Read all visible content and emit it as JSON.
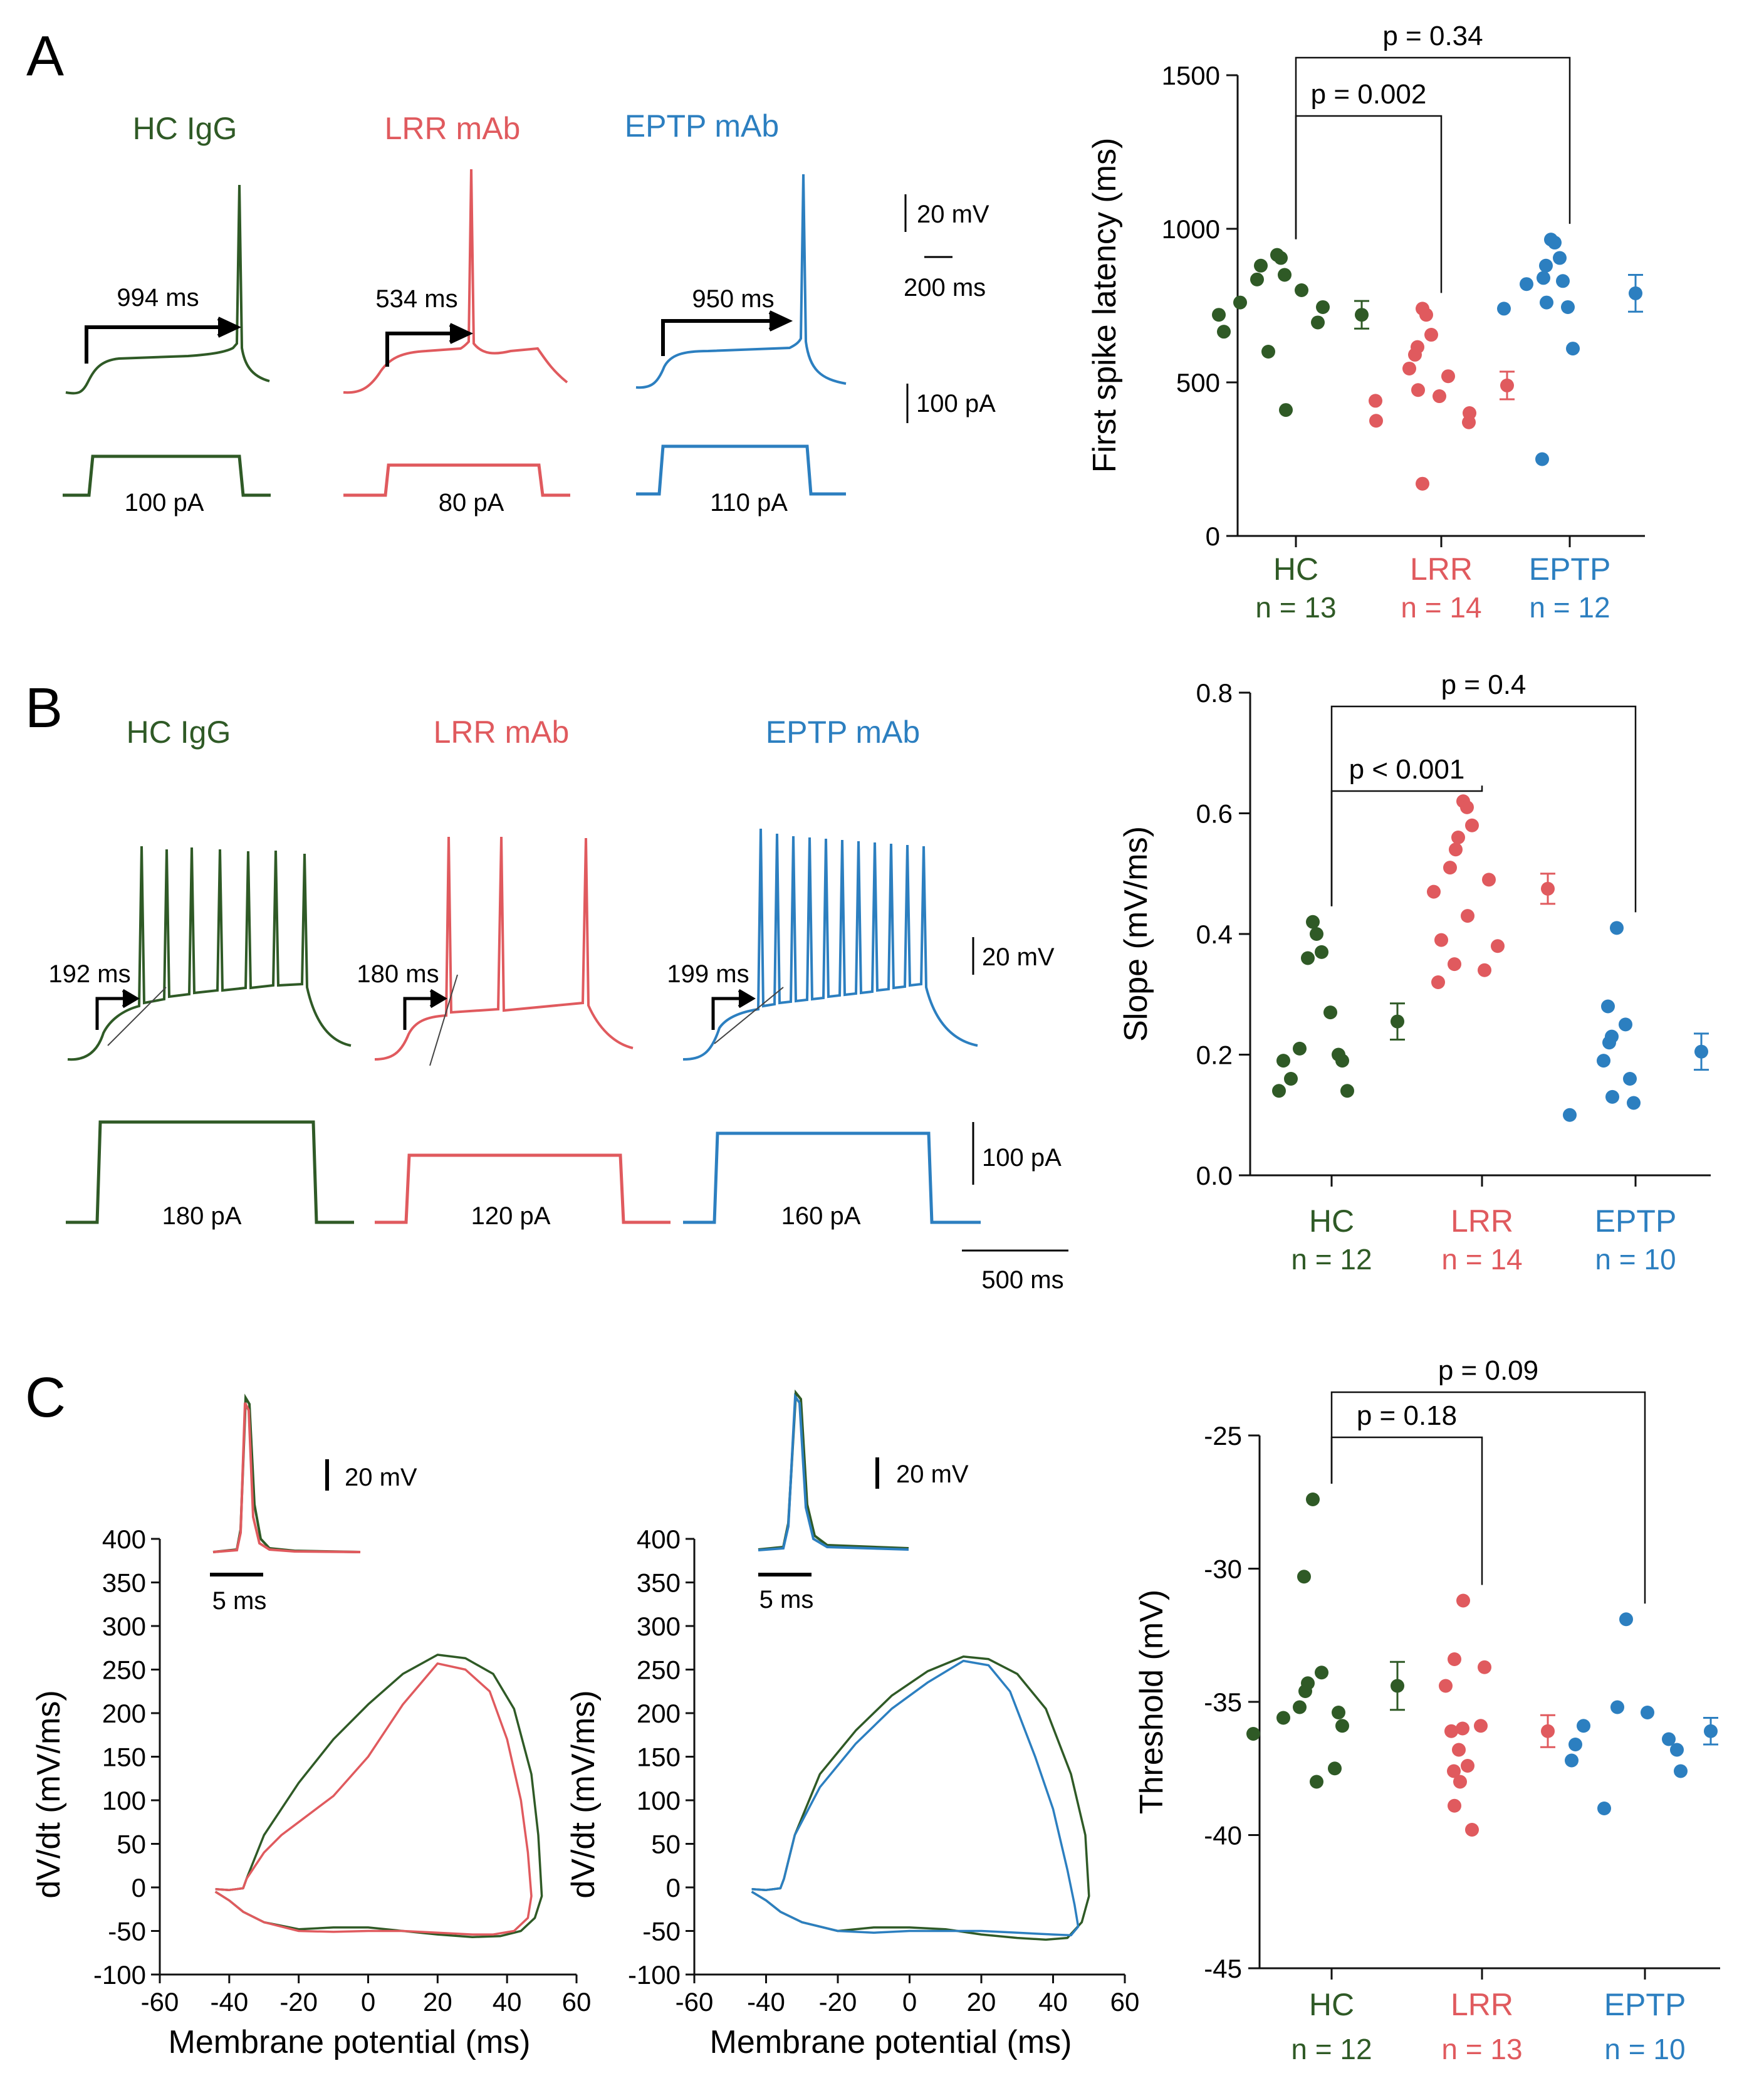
{
  "colors": {
    "hc": "#2f5a26",
    "lrr": "#e05a5e",
    "eptp": "#2c7fc0",
    "axis": "#111111"
  },
  "panels": {
    "A": {
      "letter": "A",
      "titles": [
        "HC IgG",
        "LRR mAb",
        "EPTP mAb"
      ],
      "latencies": [
        "994 ms",
        "534 ms",
        "950 ms"
      ],
      "currents": [
        "100 pA",
        "80 pA",
        "110 pA"
      ],
      "scale_v": "20 mV",
      "scale_t": "200 ms",
      "scale_i": "100 pA"
    },
    "B": {
      "letter": "B",
      "titles": [
        "HC IgG",
        "LRR mAb",
        "EPTP mAb"
      ],
      "latencies": [
        "192 ms",
        "180 ms",
        "199 ms"
      ],
      "currents": [
        "180 pA",
        "120 pA",
        "160 pA"
      ],
      "scale_v": "20 mV",
      "scale_i": "100 pA",
      "scale_t": "500 ms"
    },
    "C": {
      "letter": "C",
      "scale_v": "20 mV",
      "scale_t": "5 ms"
    }
  },
  "chart_data": [
    {
      "id": "A-latency",
      "type": "scatter",
      "ylabel": "First spike latency (ms)",
      "ylim": [
        0,
        1500
      ],
      "yticks": [
        0,
        500,
        1000,
        1500
      ],
      "groups": [
        {
          "name": "HC",
          "n": "n = 13",
          "values": [
            915,
            905,
            880,
            850,
            835,
            800,
            760,
            745,
            720,
            695,
            665,
            600,
            410
          ],
          "mean": 720,
          "sem": 45
        },
        {
          "name": "LRR",
          "n": "n = 14",
          "values": [
            740,
            720,
            655,
            615,
            590,
            545,
            520,
            475,
            455,
            440,
            400,
            375,
            370,
            170
          ],
          "mean": 490,
          "sem": 45
        },
        {
          "name": "EPTP",
          "n": "n = 12",
          "values": [
            965,
            955,
            905,
            880,
            840,
            830,
            820,
            760,
            745,
            740,
            610,
            250
          ],
          "mean": 790,
          "sem": 60
        }
      ],
      "comparisons": [
        {
          "label": "p = 0.002",
          "from": 0,
          "to": 1
        },
        {
          "label": "p = 0.34",
          "from": 0,
          "to": 2
        }
      ]
    },
    {
      "id": "B-slope",
      "type": "scatter",
      "ylabel": "Slope (mV/ms)",
      "ylim": [
        0,
        0.8
      ],
      "yticks": [
        "0.0",
        "0.2",
        "0.4",
        "0.6",
        "0.8"
      ],
      "groups": [
        {
          "name": "HC",
          "n": "n = 12",
          "values": [
            0.42,
            0.4,
            0.37,
            0.36,
            0.27,
            0.21,
            0.2,
            0.19,
            0.19,
            0.16,
            0.14,
            0.14
          ],
          "mean": 0.255,
          "sem": 0.03
        },
        {
          "name": "LRR",
          "n": "n = 14",
          "values": [
            0.62,
            0.61,
            0.58,
            0.56,
            0.54,
            0.51,
            0.49,
            0.47,
            0.43,
            0.39,
            0.38,
            0.35,
            0.34,
            0.32
          ],
          "mean": 0.475,
          "sem": 0.025
        },
        {
          "name": "EPTP",
          "n": "n = 10",
          "values": [
            0.41,
            0.28,
            0.25,
            0.23,
            0.22,
            0.19,
            0.16,
            0.13,
            0.12,
            0.1
          ],
          "mean": 0.205,
          "sem": 0.03
        }
      ],
      "comparisons": [
        {
          "label": "p < 0.001",
          "from": 0,
          "to": 1
        },
        {
          "label": "p = 0.4",
          "from": 0,
          "to": 2
        }
      ]
    },
    {
      "id": "C-threshold",
      "type": "scatter",
      "ylabel": "Threshold (mV)",
      "ylim": [
        -45,
        -25
      ],
      "yticks": [
        -45,
        -40,
        -35,
        -30,
        -25
      ],
      "groups": [
        {
          "name": "HC",
          "n": "n = 12",
          "values": [
            -27.4,
            -30.3,
            -33.9,
            -34.3,
            -34.6,
            -35.2,
            -35.4,
            -35.6,
            -35.9,
            -36.2,
            -37.5,
            -38.0
          ],
          "mean": -34.4,
          "sem": 0.9
        },
        {
          "name": "LRR",
          "n": "n = 13",
          "values": [
            -31.2,
            -33.4,
            -33.7,
            -34.4,
            -35.9,
            -36.0,
            -36.1,
            -36.8,
            -37.4,
            -37.6,
            -38.0,
            -38.9,
            -39.8
          ],
          "mean": -36.1,
          "sem": 0.6
        },
        {
          "name": "EPTP",
          "n": "n = 10",
          "values": [
            -31.9,
            -35.2,
            -35.4,
            -35.9,
            -36.4,
            -36.6,
            -36.8,
            -37.2,
            -37.6,
            -39.0
          ],
          "mean": -36.1,
          "sem": 0.5
        }
      ],
      "comparisons": [
        {
          "label": "p = 0.18",
          "from": 0,
          "to": 1
        },
        {
          "label": "p = 0.09",
          "from": 0,
          "to": 2
        }
      ]
    },
    {
      "id": "C-phase-left",
      "type": "line",
      "xlabel": "Membrane potential (ms)",
      "ylabel": "dV/dt (mV/ms)",
      "xlim": [
        -60,
        60
      ],
      "ylim": [
        -100,
        400
      ],
      "xticks": [
        -60,
        -40,
        -20,
        0,
        20,
        40,
        60
      ],
      "yticks": [
        -100,
        -50,
        0,
        50,
        100,
        150,
        200,
        250,
        300,
        350,
        400
      ],
      "series": [
        {
          "name": "HC",
          "color_key": "hc",
          "x": [
            -44,
            -40,
            -38,
            -36,
            -35,
            -30,
            -20,
            -10,
            0,
            10,
            20,
            28,
            36,
            42,
            47,
            49,
            50,
            48,
            44,
            38,
            30,
            20,
            10,
            0,
            -10,
            -20,
            -30,
            -36,
            -40,
            -44
          ],
          "y": [
            -2,
            -3,
            -2,
            -1,
            10,
            60,
            120,
            170,
            210,
            245,
            267,
            263,
            245,
            205,
            130,
            60,
            -10,
            -35,
            -50,
            -56,
            -57,
            -54,
            -50,
            -46,
            -46,
            -48,
            -40,
            -28,
            -15,
            -5
          ]
        },
        {
          "name": "LRR",
          "color_key": "lrr",
          "x": [
            -44,
            -40,
            -38,
            -36,
            -35,
            -30,
            -25,
            -20,
            -10,
            0,
            10,
            20,
            28,
            35,
            40,
            44,
            46,
            47,
            46,
            42,
            36,
            30,
            20,
            10,
            0,
            -10,
            -20,
            -30,
            -36,
            -40,
            -44
          ],
          "y": [
            -2,
            -3,
            -2,
            -1,
            10,
            40,
            60,
            75,
            105,
            150,
            210,
            257,
            250,
            225,
            170,
            100,
            40,
            -10,
            -35,
            -50,
            -54,
            -54,
            -52,
            -50,
            -50,
            -51,
            -50,
            -40,
            -28,
            -15,
            -5
          ]
        }
      ],
      "inset": {
        "series_order": [
          "HC",
          "LRR"
        ]
      }
    },
    {
      "id": "C-phase-right",
      "type": "line",
      "xlabel": "Membrane potential (ms)",
      "ylabel": "dV/dt (mV/ms)",
      "xlim": [
        -60,
        60
      ],
      "ylim": [
        -100,
        400
      ],
      "xticks": [
        -60,
        -40,
        -20,
        0,
        20,
        40,
        60
      ],
      "yticks": [
        -100,
        -50,
        0,
        50,
        100,
        150,
        200,
        250,
        300,
        350,
        400
      ],
      "series": [
        {
          "name": "HC",
          "color_key": "hc",
          "x": [
            -44,
            -40,
            -38,
            -36,
            -35,
            -32,
            -25,
            -15,
            -5,
            5,
            15,
            22,
            30,
            38,
            45,
            49,
            50,
            48,
            44,
            38,
            30,
            20,
            10,
            0,
            -10,
            -20,
            -30,
            -36,
            -40,
            -44
          ],
          "y": [
            -2,
            -3,
            -2,
            -1,
            10,
            60,
            130,
            180,
            220,
            248,
            265,
            262,
            245,
            205,
            130,
            60,
            -10,
            -40,
            -58,
            -60,
            -58,
            -54,
            -48,
            -46,
            -46,
            -50,
            -40,
            -28,
            -15,
            -5
          ]
        },
        {
          "name": "EPTP",
          "color_key": "eptp",
          "x": [
            -44,
            -40,
            -38,
            -36,
            -35,
            -32,
            -25,
            -15,
            -5,
            5,
            15,
            22,
            28,
            35,
            40,
            44,
            46,
            47,
            45,
            40,
            35,
            30,
            20,
            10,
            0,
            -10,
            -20,
            -30,
            -36,
            -40,
            -44
          ],
          "y": [
            -2,
            -3,
            -2,
            -1,
            10,
            60,
            115,
            165,
            205,
            235,
            260,
            255,
            225,
            150,
            90,
            20,
            -20,
            -45,
            -55,
            -54,
            -53,
            -52,
            -50,
            -50,
            -50,
            -52,
            -50,
            -40,
            -28,
            -15,
            -5
          ]
        }
      ],
      "inset": {
        "series_order": [
          "HC",
          "EPTP"
        ]
      }
    }
  ]
}
